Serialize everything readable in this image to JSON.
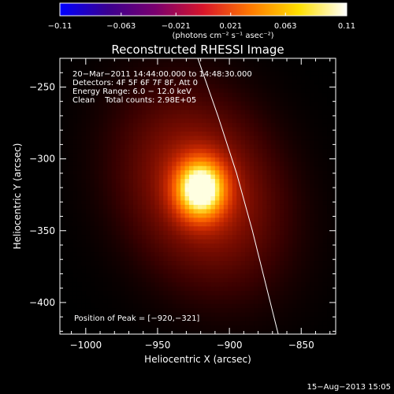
{
  "chart_data": {
    "type": "heatmap",
    "title": "Reconstructed RHESSI Image",
    "xlabel": "Heliocentric X (arcsec)",
    "ylabel": "Heliocentric Y (arcsec)",
    "xlim": [
      -1018,
      -826
    ],
    "ylim": [
      -422,
      -230
    ],
    "x_ticks": [
      -1000,
      -950,
      -900,
      -850
    ],
    "y_ticks": [
      -250,
      -300,
      -350,
      -400
    ],
    "x_tick_labels": [
      "−1000",
      "−950",
      "−900",
      "−850"
    ],
    "y_tick_labels": [
      "−250",
      "−300",
      "−350",
      "−400"
    ],
    "colorbar": {
      "min": -0.11,
      "max": 0.11,
      "ticks": [
        -0.11,
        -0.063,
        -0.021,
        0.021,
        0.063,
        0.11
      ],
      "tick_labels": [
        "−0.11",
        "−0.063",
        "−0.021",
        "0.021",
        "0.063",
        "0.11"
      ],
      "label": "(photons cm⁻² s⁻¹ asec⁻²)",
      "colors": [
        "#0000ff",
        "#3a0090",
        "#7a006e",
        "#d8152a",
        "#ff7a00",
        "#ffe000",
        "#ffffff"
      ]
    },
    "source": {
      "peak_x": -920,
      "peak_y": -321,
      "peak_value": 0.11,
      "sigma_x": 11,
      "sigma_y": 13,
      "halo_value": 0.035,
      "halo_sigma_x": 30,
      "halo_sigma_y": 40,
      "halo_tilt_deg": 25
    },
    "limb_curve": {
      "x": [
        -922,
        -908,
        -895,
        -884,
        -874,
        -866
      ],
      "y": [
        -230,
        -270,
        -310,
        -350,
        -390,
        -422
      ]
    },
    "info_lines": [
      "20−Mar−2011 14:44:00.000 to 14:48:30.000",
      "Detectors: 4F 5F 6F 7F 8F, Att 0",
      "Energy Range: 6.0 − 12.0 keV",
      "Clean    Total counts: 2.98E+05"
    ],
    "peak_label": "Position of Peak = [−920,−321]",
    "footer_date": "15−Aug−2013 15:05"
  }
}
